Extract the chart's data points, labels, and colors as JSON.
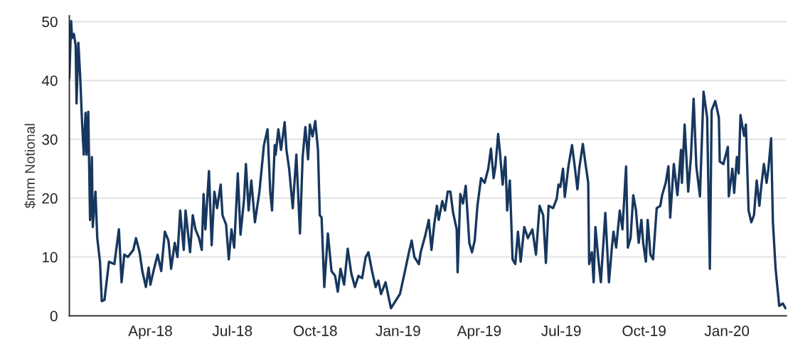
{
  "chart_data": {
    "type": "line",
    "ylabel": "$mm Notional",
    "x": [
      "2018-01-01",
      "2018-01-03",
      "2018-01-04",
      "2018-01-06",
      "2018-01-08",
      "2018-01-09",
      "2018-01-11",
      "2018-01-13",
      "2018-01-15",
      "2018-01-17",
      "2018-01-19",
      "2018-01-20",
      "2018-01-22",
      "2018-01-24",
      "2018-01-26",
      "2018-01-27",
      "2018-01-30",
      "2018-02-01",
      "2018-02-04",
      "2018-02-06",
      "2018-02-09",
      "2018-02-14",
      "2018-02-20",
      "2018-02-25",
      "2018-02-28",
      "2018-03-03",
      "2018-03-07",
      "2018-03-13",
      "2018-03-16",
      "2018-03-20",
      "2018-03-23",
      "2018-03-27",
      "2018-03-30",
      "2018-04-01",
      "2018-04-05",
      "2018-04-09",
      "2018-04-13",
      "2018-04-17",
      "2018-04-21",
      "2018-04-24",
      "2018-04-28",
      "2018-05-01",
      "2018-05-04",
      "2018-05-08",
      "2018-05-10",
      "2018-05-15",
      "2018-05-18",
      "2018-05-21",
      "2018-05-25",
      "2018-05-28",
      "2018-05-30",
      "2018-06-01",
      "2018-06-05",
      "2018-06-08",
      "2018-06-11",
      "2018-06-14",
      "2018-06-18",
      "2018-06-20",
      "2018-06-24",
      "2018-06-27",
      "2018-06-30",
      "2018-07-03",
      "2018-07-07",
      "2018-07-10",
      "2018-07-14",
      "2018-07-16",
      "2018-07-19",
      "2018-07-22",
      "2018-07-26",
      "2018-07-31",
      "2018-08-05",
      "2018-08-09",
      "2018-08-12",
      "2018-08-14",
      "2018-08-17",
      "2018-08-18",
      "2018-08-21",
      "2018-08-24",
      "2018-08-28",
      "2018-08-30",
      "2018-09-02",
      "2018-09-06",
      "2018-09-10",
      "2018-09-14",
      "2018-09-17",
      "2018-09-20",
      "2018-09-23",
      "2018-09-25",
      "2018-09-28",
      "2018-10-01",
      "2018-10-04",
      "2018-10-06",
      "2018-10-08",
      "2018-10-11",
      "2018-10-15",
      "2018-10-19",
      "2018-10-23",
      "2018-10-26",
      "2018-10-29",
      "2018-11-02",
      "2018-11-06",
      "2018-11-10",
      "2018-11-14",
      "2018-11-18",
      "2018-11-22",
      "2018-11-26",
      "2018-11-29",
      "2018-12-03",
      "2018-12-07",
      "2018-12-10",
      "2018-12-13",
      "2018-12-18",
      "2018-12-24",
      "2018-12-29",
      "2019-01-03",
      "2019-01-08",
      "2019-01-13",
      "2019-01-16",
      "2019-01-19",
      "2019-01-24",
      "2019-01-26",
      "2019-01-31",
      "2019-02-04",
      "2019-02-07",
      "2019-02-10",
      "2019-02-13",
      "2019-02-15",
      "2019-02-19",
      "2019-02-22",
      "2019-02-25",
      "2019-02-28",
      "2019-03-03",
      "2019-03-07",
      "2019-03-08",
      "2019-03-11",
      "2019-03-14",
      "2019-03-17",
      "2019-03-21",
      "2019-03-24",
      "2019-03-27",
      "2019-03-30",
      "2019-04-03",
      "2019-04-07",
      "2019-04-11",
      "2019-04-14",
      "2019-04-17",
      "2019-04-19",
      "2019-04-22",
      "2019-04-24",
      "2019-04-27",
      "2019-04-30",
      "2019-05-02",
      "2019-05-05",
      "2019-05-08",
      "2019-05-11",
      "2019-05-14",
      "2019-05-17",
      "2019-05-21",
      "2019-05-25",
      "2019-05-30",
      "2019-06-03",
      "2019-06-07",
      "2019-06-11",
      "2019-06-14",
      "2019-06-17",
      "2019-06-22",
      "2019-06-26",
      "2019-06-28",
      "2019-06-30",
      "2019-07-03",
      "2019-07-05",
      "2019-07-09",
      "2019-07-13",
      "2019-07-16",
      "2019-07-19",
      "2019-07-21",
      "2019-07-25",
      "2019-07-28",
      "2019-07-31",
      "2019-08-01",
      "2019-08-04",
      "2019-08-06",
      "2019-08-08",
      "2019-08-11",
      "2019-08-14",
      "2019-08-19",
      "2019-08-23",
      "2019-08-26",
      "2019-08-28",
      "2019-08-31",
      "2019-09-04",
      "2019-09-07",
      "2019-09-11",
      "2019-09-13",
      "2019-09-16",
      "2019-09-19",
      "2019-09-22",
      "2019-09-25",
      "2019-09-28",
      "2019-09-30",
      "2019-10-03",
      "2019-10-05",
      "2019-10-08",
      "2019-10-11",
      "2019-10-15",
      "2019-10-19",
      "2019-10-21",
      "2019-10-25",
      "2019-10-28",
      "2019-10-30",
      "2019-11-03",
      "2019-11-07",
      "2019-11-11",
      "2019-11-12",
      "2019-11-15",
      "2019-11-19",
      "2019-11-22",
      "2019-11-25",
      "2019-11-28",
      "2019-12-02",
      "2019-12-06",
      "2019-12-10",
      "2019-12-13",
      "2019-12-15",
      "2019-12-19",
      "2019-12-23",
      "2019-12-24",
      "2019-12-28",
      "2020-01-02",
      "2020-01-03",
      "2020-01-07",
      "2020-01-09",
      "2020-01-12",
      "2020-01-14",
      "2020-01-16",
      "2020-01-20",
      "2020-01-22",
      "2020-01-25",
      "2020-01-28",
      "2020-01-31",
      "2020-02-03",
      "2020-02-06",
      "2020-02-08",
      "2020-02-11",
      "2020-02-14",
      "2020-02-16",
      "2020-02-19",
      "2020-02-21",
      "2020-02-24",
      "2020-02-28",
      "2020-03-03",
      "2020-03-06"
    ],
    "series": [
      {
        "color": "#17375e",
        "values": [
          40.4,
          50.1,
          47.2,
          47.9,
          46,
          36.1,
          46.4,
          40.8,
          33.3,
          27.4,
          34.5,
          27.4,
          34.7,
          16.3,
          27,
          15.1,
          21.1,
          13.2,
          9.2,
          2.5,
          2.7,
          9.2,
          8.8,
          14.7,
          5.7,
          10.4,
          10,
          11.2,
          13.2,
          10.8,
          7.6,
          4.9,
          8.2,
          5.3,
          8,
          10.4,
          7.6,
          14.3,
          12.8,
          8,
          12.4,
          10,
          17.9,
          11.2,
          17.9,
          10.8,
          17.1,
          14.7,
          13.2,
          11.2,
          20.7,
          14.7,
          24.6,
          12,
          21.1,
          18.3,
          22.3,
          17.1,
          15.5,
          9.6,
          14.7,
          11.6,
          24.2,
          13.8,
          19.9,
          25.8,
          17.9,
          23,
          15.9,
          21.1,
          29,
          31.7,
          21.1,
          17.9,
          29,
          27.4,
          31.7,
          28.2,
          32.9,
          28.2,
          25,
          18.3,
          27.4,
          14,
          27,
          32.1,
          26.6,
          32.5,
          30.5,
          33.1,
          28.2,
          17.1,
          16.7,
          4.9,
          14,
          7.6,
          6.8,
          4.1,
          8,
          5.3,
          11.4,
          7.2,
          4.9,
          6.8,
          6.4,
          10,
          10.8,
          7.6,
          4.9,
          6,
          3.7,
          5.7,
          1.3,
          2.5,
          3.7,
          7.2,
          10.8,
          12.8,
          10,
          8.8,
          10.8,
          13.6,
          16.3,
          11.2,
          15.5,
          18.7,
          16.3,
          19.5,
          17.9,
          21.1,
          21.1,
          17.5,
          14.7,
          7.4,
          20.7,
          19.1,
          22.1,
          12.4,
          10.8,
          12.8,
          18.7,
          23.4,
          22.6,
          25,
          28.4,
          23.4,
          25.4,
          30.9,
          27.8,
          22.3,
          27,
          17.9,
          23,
          9.6,
          8.8,
          14.3,
          9.2,
          15.1,
          13.2,
          14.7,
          10.4,
          18.7,
          17.1,
          9,
          18.7,
          18.3,
          19.9,
          22.3,
          21.9,
          25,
          20.2,
          25.4,
          29,
          25.4,
          21.5,
          25,
          29.2,
          25.8,
          22.6,
          8.8,
          10.8,
          5.7,
          15.1,
          10,
          5.7,
          17.5,
          5.7,
          11.2,
          14.3,
          11.6,
          17.9,
          14.7,
          25.4,
          11.6,
          13.2,
          20.5,
          17.9,
          12.4,
          16.3,
          12.4,
          9.2,
          16.3,
          10.4,
          9.6,
          18.3,
          18.7,
          20.5,
          22.6,
          25.4,
          16.7,
          25.8,
          20.5,
          28.2,
          22.6,
          32.5,
          21.1,
          27,
          36.9,
          25.4,
          20.3,
          38.1,
          33.7,
          8,
          34.9,
          36.5,
          33.7,
          26.2,
          25.8,
          28.7,
          20.3,
          25,
          20.9,
          27,
          24.2,
          34.1,
          30.6,
          32.5,
          17.9,
          15.9,
          17.1,
          23,
          18.7,
          21.9,
          25.8,
          22.6,
          25,
          30.2,
          15.9,
          8,
          1.7,
          2.1,
          1.3
        ]
      }
    ],
    "xlim": [
      "2018-01-01",
      "2020-03-07"
    ],
    "xticks": [
      {
        "value": "2018-04-01",
        "label": "Apr-18"
      },
      {
        "value": "2018-07-01",
        "label": "Jul-18"
      },
      {
        "value": "2018-10-01",
        "label": "Oct-18"
      },
      {
        "value": "2019-01-01",
        "label": "Jan-19"
      },
      {
        "value": "2019-04-01",
        "label": "Apr-19"
      },
      {
        "value": "2019-07-01",
        "label": "Jul-19"
      },
      {
        "value": "2019-10-01",
        "label": "Oct-19"
      },
      {
        "value": "2020-01-01",
        "label": "Jan-20"
      }
    ],
    "ylim": [
      0,
      51
    ],
    "yticks": [
      0,
      10,
      20,
      30,
      40,
      50
    ],
    "grid": "y",
    "line_style": "solid",
    "marker": "none"
  }
}
